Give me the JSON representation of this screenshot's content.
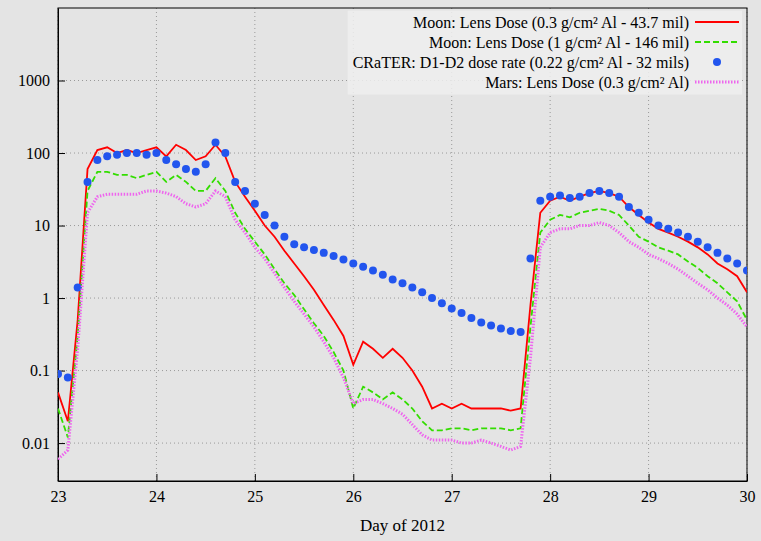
{
  "chart_data": {
    "type": "line",
    "x_label": "Day of 2012",
    "x": [
      23.0,
      23.1,
      23.2,
      23.3,
      23.4,
      23.5,
      23.6,
      23.7,
      23.8,
      23.9,
      24.0,
      24.1,
      24.2,
      24.3,
      24.4,
      24.5,
      24.6,
      24.7,
      24.8,
      24.9,
      25.0,
      25.1,
      25.2,
      25.3,
      25.4,
      25.5,
      25.6,
      25.7,
      25.8,
      25.9,
      26.0,
      26.1,
      26.2,
      26.3,
      26.4,
      26.5,
      26.6,
      26.7,
      26.8,
      26.9,
      27.0,
      27.1,
      27.2,
      27.3,
      27.4,
      27.5,
      27.6,
      27.7,
      27.8,
      27.9,
      28.0,
      28.1,
      28.2,
      28.3,
      28.4,
      28.5,
      28.6,
      28.7,
      28.8,
      28.9,
      29.0,
      29.1,
      29.2,
      29.3,
      29.4,
      29.5,
      29.6,
      29.7,
      29.8,
      29.9,
      30.0
    ],
    "series": [
      {
        "name": "Moon: Lens Dose (0.3 g/cm² Al - 43.7 mil)",
        "color": "#ff0000",
        "type": "line",
        "line_style": "solid",
        "values": [
          0.05,
          0.02,
          0.5,
          60,
          110,
          120,
          100,
          110,
          100,
          110,
          120,
          90,
          130,
          110,
          80,
          90,
          130,
          90,
          40,
          25,
          16,
          10,
          7,
          4.5,
          3,
          2,
          1.3,
          0.8,
          0.5,
          0.3,
          0.12,
          0.25,
          0.2,
          0.15,
          0.2,
          0.15,
          0.1,
          0.06,
          0.03,
          0.035,
          0.03,
          0.035,
          0.03,
          0.03,
          0.03,
          0.03,
          0.028,
          0.03,
          0.8,
          15,
          22,
          25,
          22,
          25,
          28,
          30,
          28,
          25,
          18,
          14,
          11,
          9,
          8,
          7,
          6,
          5,
          4,
          3,
          2.5,
          2,
          1.2
        ]
      },
      {
        "name": "Moon: Lens Dose (1 g/cm² Al - 146 mil)",
        "color": "#33dd00",
        "type": "line",
        "line_style": "dashed",
        "values": [
          0.03,
          0.012,
          0.3,
          30,
          55,
          55,
          50,
          50,
          45,
          50,
          55,
          40,
          50,
          40,
          30,
          30,
          45,
          30,
          15,
          9,
          6,
          4,
          2.5,
          1.6,
          1.1,
          0.7,
          0.45,
          0.3,
          0.18,
          0.1,
          0.03,
          0.06,
          0.05,
          0.04,
          0.05,
          0.04,
          0.03,
          0.02,
          0.015,
          0.015,
          0.016,
          0.016,
          0.015,
          0.016,
          0.016,
          0.016,
          0.015,
          0.016,
          0.4,
          8,
          12,
          14,
          13,
          15,
          16,
          17,
          16,
          14,
          10,
          7,
          6,
          5,
          4.5,
          4,
          3.2,
          2.6,
          2,
          1.6,
          1.2,
          0.9,
          0.5
        ]
      },
      {
        "name": "CRaTER: D1-D2 dose rate (0.22 g/cm² Al - 32 mils)",
        "color": "#2255ee",
        "type": "scatter",
        "marker": "circle",
        "values": [
          0.09,
          0.08,
          1.4,
          40,
          80,
          90,
          95,
          100,
          100,
          95,
          100,
          80,
          70,
          60,
          55,
          70,
          140,
          100,
          40,
          30,
          20,
          14,
          10,
          7,
          5.5,
          5,
          4.6,
          4.2,
          3.8,
          3.4,
          3,
          2.7,
          2.4,
          2.1,
          1.8,
          1.6,
          1.4,
          1.2,
          1,
          0.85,
          0.72,
          0.62,
          0.53,
          0.46,
          0.42,
          0.38,
          0.35,
          0.34,
          3.5,
          22,
          25,
          26,
          24,
          25,
          28,
          30,
          28,
          25,
          18,
          15,
          12,
          10,
          9,
          8,
          7,
          6,
          5,
          4.2,
          3.5,
          3,
          2.4
        ]
      },
      {
        "name": "Mars:  Lens Dose (0.3 g/cm² Al)",
        "color": "#ee66ee",
        "type": "line",
        "line_style": "dotted",
        "values": [
          0.006,
          0.008,
          0.2,
          15,
          25,
          27,
          27,
          27,
          27,
          30,
          30,
          28,
          25,
          20,
          18,
          20,
          30,
          25,
          12,
          8,
          5,
          3.5,
          2.2,
          1.4,
          0.9,
          0.6,
          0.4,
          0.25,
          0.15,
          0.08,
          0.035,
          0.04,
          0.04,
          0.035,
          0.03,
          0.025,
          0.018,
          0.013,
          0.011,
          0.011,
          0.011,
          0.01,
          0.01,
          0.011,
          0.01,
          0.009,
          0.008,
          0.009,
          0.15,
          5,
          8,
          9,
          9,
          10,
          10,
          11,
          10,
          8,
          6,
          5,
          4,
          3.5,
          3,
          2.5,
          2,
          1.6,
          1.3,
          1,
          0.8,
          0.6,
          0.4
        ]
      }
    ],
    "xlim": [
      23,
      30
    ],
    "xticks": [
      23,
      24,
      25,
      26,
      27,
      28,
      29,
      30
    ],
    "ylim": [
      0.003,
      10000
    ],
    "yticks": [
      0.01,
      0.1,
      1,
      10,
      100,
      1000
    ],
    "log": "y",
    "grid": true,
    "legend": "upper right"
  }
}
